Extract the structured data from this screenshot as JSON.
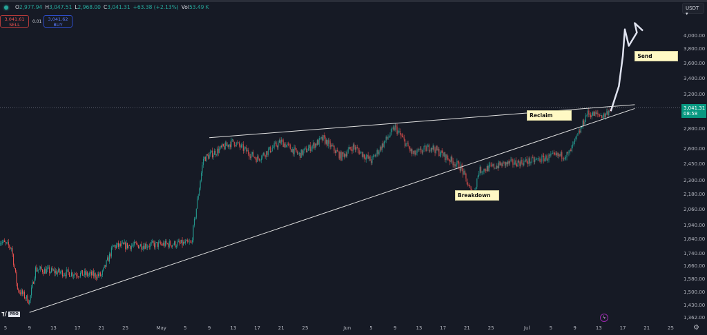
{
  "header": {
    "ohlc": {
      "o_label": "O",
      "o": "2,977.94",
      "h_label": "H",
      "h": "3,047.51",
      "l_label": "L",
      "l": "2,968.00",
      "c_label": "C",
      "c": "3,041.31",
      "change": "+63.38 (+2.13%)",
      "vol_label": "Vol",
      "vol": "53.49 K"
    },
    "sell": {
      "price": "3,041.61",
      "label": "SELL"
    },
    "buy": {
      "price": "3,041.62",
      "label": "BUY"
    },
    "spread": "0.01",
    "currency": "USDT",
    "currency_icon": "chevron-down-icon"
  },
  "price_tag": {
    "price": "3,041.31",
    "countdown": "08:58",
    "color": "#089981"
  },
  "logo": {
    "text": "TV",
    "badge": "PRO"
  },
  "colors": {
    "up": "#26a69a",
    "down": "#ef5350",
    "background": "#161a25",
    "projection": "#e0e3f0",
    "trendline": "#e0e0e0"
  },
  "chart_data": {
    "type": "candlestick",
    "y_scale": "log",
    "ylim": [
      1362,
      4000
    ],
    "y_ticks": [
      "4,000.00",
      "3,800.00",
      "3,600.00",
      "3,400.00",
      "3,200.00",
      "2,800.00",
      "2,600.00",
      "2,450.00",
      "2,300.00",
      "2,180.00",
      "2,060.00",
      "1,940.00",
      "1,840.00",
      "1,740.00",
      "1,660.00",
      "1,580.00",
      "1,500.00",
      "1,430.00",
      "1,362.00"
    ],
    "x_ticks": [
      {
        "date": "2024-04-05",
        "label": "5"
      },
      {
        "date": "2024-04-09",
        "label": "9"
      },
      {
        "date": "2024-04-13",
        "label": "13"
      },
      {
        "date": "2024-04-17",
        "label": "17"
      },
      {
        "date": "2024-04-21",
        "label": "21"
      },
      {
        "date": "2024-04-25",
        "label": "25"
      },
      {
        "date": "2024-05-01",
        "label": "May"
      },
      {
        "date": "2024-05-05",
        "label": "5"
      },
      {
        "date": "2024-05-09",
        "label": "9"
      },
      {
        "date": "2024-05-13",
        "label": "13"
      },
      {
        "date": "2024-05-17",
        "label": "17"
      },
      {
        "date": "2024-05-21",
        "label": "21"
      },
      {
        "date": "2024-05-25",
        "label": "25"
      },
      {
        "date": "2024-06-01",
        "label": "Jun"
      },
      {
        "date": "2024-06-05",
        "label": "5"
      },
      {
        "date": "2024-06-09",
        "label": "9"
      },
      {
        "date": "2024-06-13",
        "label": "13"
      },
      {
        "date": "2024-06-17",
        "label": "17"
      },
      {
        "date": "2024-06-21",
        "label": "21"
      },
      {
        "date": "2024-06-25",
        "label": "25"
      },
      {
        "date": "2024-07-01",
        "label": "Jul"
      },
      {
        "date": "2024-07-05",
        "label": "5"
      },
      {
        "date": "2024-07-09",
        "label": "9"
      },
      {
        "date": "2024-07-13",
        "label": "13"
      },
      {
        "date": "2024-07-17",
        "label": "17"
      },
      {
        "date": "2024-07-21",
        "label": "21"
      },
      {
        "date": "2024-07-25",
        "label": "25"
      }
    ],
    "price_path": [
      [
        "2024-04-04",
        1830
      ],
      [
        "2024-04-06",
        1780
      ],
      [
        "2024-04-07",
        1520
      ],
      [
        "2024-04-09",
        1450
      ],
      [
        "2024-04-10",
        1640
      ],
      [
        "2024-04-14",
        1620
      ],
      [
        "2024-04-21",
        1600
      ],
      [
        "2024-04-23",
        1790
      ],
      [
        "2024-05-06",
        1810
      ],
      [
        "2024-05-08",
        2500
      ],
      [
        "2024-05-13",
        2670
      ],
      [
        "2024-05-17",
        2500
      ],
      [
        "2024-05-21",
        2670
      ],
      [
        "2024-05-24",
        2540
      ],
      [
        "2024-05-28",
        2700
      ],
      [
        "2024-05-31",
        2520
      ],
      [
        "2024-06-02",
        2620
      ],
      [
        "2024-06-05",
        2480
      ],
      [
        "2024-06-09",
        2820
      ],
      [
        "2024-06-12",
        2540
      ],
      [
        "2024-06-15",
        2620
      ],
      [
        "2024-06-20",
        2420
      ],
      [
        "2024-06-22",
        2160
      ],
      [
        "2024-06-23",
        2390
      ],
      [
        "2024-06-27",
        2450
      ],
      [
        "2024-07-02",
        2480
      ],
      [
        "2024-07-05",
        2520
      ],
      [
        "2024-07-08",
        2540
      ],
      [
        "2024-07-10",
        2800
      ],
      [
        "2024-07-11",
        2970
      ],
      [
        "2024-07-14",
        2950
      ],
      [
        "2024-07-15",
        3041.31
      ]
    ],
    "projection_path": [
      [
        "2024-07-15",
        3000
      ],
      [
        "2024-07-16",
        3300
      ],
      [
        "2024-07-17",
        3700
      ],
      [
        "2024-07-17",
        4100
      ],
      [
        "2024-07-18",
        3850
      ],
      [
        "2024-07-19",
        4050
      ],
      [
        "2024-07-19",
        4200
      ],
      [
        "2024-07-20",
        4080
      ]
    ],
    "trendlines": [
      {
        "name": "resistance",
        "from": [
          "2024-05-09",
          2710
        ],
        "to": [
          "2024-07-19",
          3075
        ]
      },
      {
        "name": "support",
        "from": [
          "2024-04-09",
          1390
        ],
        "to": [
          "2024-07-19",
          3030
        ]
      }
    ],
    "current_price": 3041.31,
    "annotations": [
      {
        "text": "Reclaim",
        "date": "2024-07-01",
        "price": 2960
      },
      {
        "text": "Send",
        "date": "2024-07-19",
        "price": 3720
      },
      {
        "text": "Breakdown",
        "date": "2024-06-19",
        "price": 2180
      }
    ]
  }
}
